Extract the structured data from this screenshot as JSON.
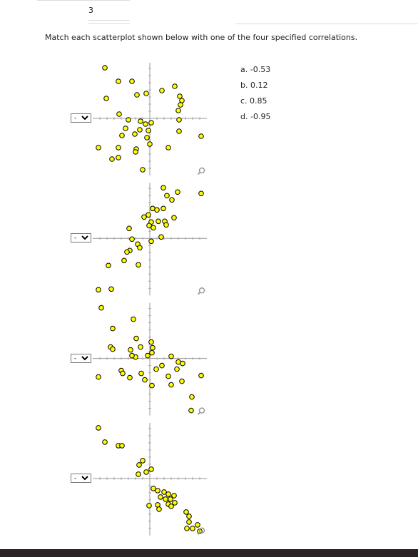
{
  "header": {
    "number": "3"
  },
  "question": "Match each scatterplot shown below with one of the four specified correlations.",
  "options": [
    "a. -0.53",
    "b. 0.12",
    "c. 0.85",
    "d. -0.95"
  ],
  "plots": [
    {
      "type": "scatter",
      "dropdown": "-",
      "xlim": [
        -8,
        8
      ],
      "ylim": [
        -8,
        8
      ],
      "x": [
        -6.3,
        -4.4,
        -2.5,
        -6.1,
        -1.8,
        -0.5,
        1.7,
        3.5,
        4.2,
        4.5,
        4.3,
        4.0,
        -4.3,
        -3.0,
        -1.3,
        -0.6,
        0.2,
        -0.2,
        -1.4,
        -3.4,
        -3.9,
        -2.1,
        -0.4,
        4.1,
        4.1,
        7.2,
        -7.2,
        -4.4,
        -1.9,
        -2.0,
        0.0,
        2.6,
        -5.3,
        -4.4,
        -1.0
      ],
      "y": [
        7.1,
        5.2,
        5.2,
        2.8,
        3.3,
        3.5,
        3.9,
        4.5,
        3.1,
        2.5,
        1.9,
        1.1,
        0.6,
        -0.2,
        -0.4,
        -0.8,
        -0.6,
        -1.7,
        -1.6,
        -1.4,
        -2.4,
        -2.2,
        -2.7,
        -0.2,
        -1.8,
        -2.5,
        -4.1,
        -4.1,
        -4.3,
        -4.7,
        -3.6,
        -4.1,
        -5.7,
        -5.5,
        -7.2
      ]
    },
    {
      "type": "scatter",
      "dropdown": "-",
      "xlim": [
        -8,
        8
      ],
      "ylim": [
        -8,
        8
      ],
      "x": [
        1.9,
        3.9,
        2.4,
        3.1,
        7.2,
        0.4,
        1.0,
        1.9,
        -0.2,
        3.4,
        -0.8,
        0.2,
        1.2,
        2.1,
        2.3,
        0.5,
        -0.1,
        -2.9,
        1.6,
        0.2,
        -2.5,
        -1.7,
        -1.4,
        -2.8,
        -3.2,
        -3.6,
        -1.6,
        -5.8,
        -7.2,
        -5.4
      ],
      "y": [
        7.1,
        6.5,
        6.0,
        5.4,
        6.3,
        4.2,
        4.0,
        4.2,
        3.3,
        2.9,
        3.0,
        2.3,
        2.4,
        2.4,
        1.9,
        1.5,
        1.8,
        1.4,
        0.2,
        -0.4,
        -0.1,
        -0.8,
        -1.3,
        -1.7,
        -1.9,
        -3.1,
        -3.7,
        -3.8,
        -7.2,
        -7.1
      ]
    },
    {
      "type": "scatter",
      "dropdown": "-",
      "xlim": [
        -8,
        8
      ],
      "ylim": [
        -8,
        8
      ],
      "x": [
        -6.8,
        -2.3,
        -5.2,
        -1.9,
        0.2,
        0.4,
        0.3,
        -1.3,
        -2.7,
        -5.5,
        -5.2,
        -2.0,
        -2.5,
        -0.3,
        3.0,
        4.0,
        4.6,
        1.7,
        0.9,
        3.8,
        -4.0,
        -3.8,
        -1.2,
        -2.8,
        -0.7,
        -7.2,
        2.6,
        3.0,
        0.3,
        4.5,
        7.2,
        5.9,
        5.8
      ],
      "y": [
        7.1,
        5.5,
        4.2,
        2.8,
        2.3,
        1.5,
        0.8,
        1.6,
        1.2,
        1.6,
        1.3,
        0.2,
        0.4,
        0.4,
        0.3,
        -0.5,
        -0.7,
        -1.0,
        -1.5,
        -1.5,
        -1.7,
        -2.1,
        -2.1,
        -2.7,
        -3.0,
        -2.6,
        -2.5,
        -3.7,
        -3.8,
        -3.2,
        -2.4,
        -5.4,
        -7.3
      ]
    },
    {
      "type": "scatter",
      "dropdown": "-",
      "xlim": [
        -8,
        8
      ],
      "ylim": [
        -8,
        8
      ],
      "x": [
        -7.2,
        -6.3,
        -4.4,
        -3.9,
        -1.0,
        -1.5,
        0.2,
        -0.5,
        -1.6,
        0.5,
        1.1,
        2.0,
        2.6,
        1.5,
        2.2,
        2.9,
        3.4,
        3.5,
        2.6,
        3.0,
        1.1,
        -0.1,
        1.3,
        5.1,
        5.5,
        5.5,
        6.7,
        6.0,
        5.2,
        7.0
      ],
      "y": [
        7.1,
        5.1,
        4.6,
        4.6,
        2.5,
        1.9,
        1.3,
        0.9,
        0.6,
        -1.4,
        -1.7,
        -1.9,
        -2.2,
        -2.6,
        -2.9,
        -2.9,
        -2.4,
        -3.4,
        -3.6,
        -3.9,
        -3.7,
        -3.8,
        -4.3,
        -4.7,
        -5.3,
        -6.1,
        -6.5,
        -7.0,
        -7.0,
        -7.4
      ]
    }
  ]
}
